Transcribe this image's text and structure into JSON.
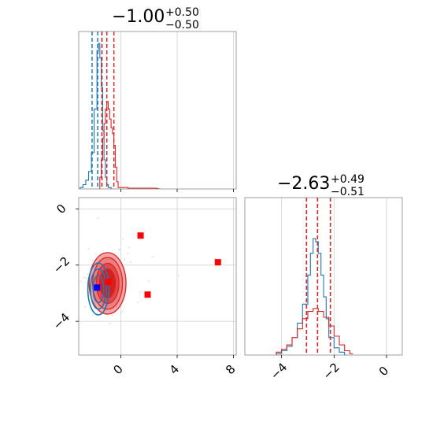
{
  "chart_data": {
    "type": "corner",
    "parameters": [
      {
        "title_value": "−1.00",
        "title_upper": "+0.50",
        "title_lower": "−0.50"
      },
      {
        "title_value": "−2.63",
        "title_upper": "+0.49",
        "title_lower": "−0.51"
      }
    ],
    "xlim_param1": [
      -3.0,
      8.2
    ],
    "xlim_param2": [
      -5.4,
      0.6
    ],
    "ylim_param2": [
      -5.2,
      0.4
    ],
    "ticks_param1": [
      0,
      4,
      8
    ],
    "ticks_param2": [
      -4,
      -2,
      0
    ],
    "tick_labels_param1": [
      "0",
      "4",
      "8"
    ],
    "tick_labels_param2": [
      "−4",
      "−2",
      "0"
    ],
    "grid": true,
    "series": [
      {
        "color": "#1f77b4",
        "marginal1_quantiles": [
          -2.05,
          -1.65,
          -1.35
        ],
        "marginal2_quantiles": [
          -3.05,
          -2.63,
          -2.14
        ]
      },
      {
        "color": "#d62728",
        "marginal1_quantiles": [
          -1.35,
          -1.0,
          -0.5
        ],
        "marginal2_quantiles": [
          -3.05,
          -2.63,
          -2.14
        ]
      }
    ],
    "marginal1_blue": {
      "x": [
        -2.9,
        -2.7,
        -2.5,
        -2.3,
        -2.1,
        -1.9,
        -1.7,
        -1.6,
        -1.5,
        -1.4,
        -1.3,
        -1.2,
        -1.1,
        -1.0,
        -0.9,
        -0.7
      ],
      "y": [
        0.01,
        0.03,
        0.06,
        0.12,
        0.25,
        0.55,
        0.95,
        1.0,
        0.9,
        0.7,
        0.4,
        0.2,
        0.08,
        0.03,
        0.01,
        0
      ]
    },
    "marginal1_red": {
      "x": [
        -1.5,
        -1.4,
        -1.3,
        -1.2,
        -1.1,
        -1.0,
        -0.9,
        -0.8,
        -0.7,
        -0.6,
        -0.5,
        -0.4,
        -0.3,
        -0.2,
        0.5,
        1.5,
        2.5
      ],
      "y": [
        0.08,
        0.2,
        0.35,
        0.45,
        0.55,
        0.6,
        0.55,
        0.48,
        0.42,
        0.38,
        0.3,
        0.15,
        0.05,
        0.01,
        0.005,
        0.005,
        0.003
      ]
    },
    "marginal2_blue": {
      "x": [
        -4.2,
        -4.0,
        -3.8,
        -3.6,
        -3.4,
        -3.2,
        -3.0,
        -2.9,
        -2.8,
        -2.7,
        -2.6,
        -2.5,
        -2.4,
        -2.3,
        -2.2,
        -2.0,
        -1.8,
        -1.6
      ],
      "y": [
        0.01,
        0.03,
        0.06,
        0.12,
        0.22,
        0.35,
        0.55,
        0.7,
        0.8,
        0.78,
        0.7,
        0.55,
        0.4,
        0.25,
        0.12,
        0.05,
        0.02,
        0.0
      ]
    },
    "marginal2_red": {
      "x": [
        -4.2,
        -4.0,
        -3.8,
        -3.6,
        -3.4,
        -3.2,
        -3.0,
        -2.8,
        -2.6,
        -2.4,
        -2.2,
        -2.0,
        -1.8,
        -1.6,
        -1.4
      ],
      "y": [
        0.02,
        0.04,
        0.07,
        0.12,
        0.18,
        0.25,
        0.3,
        0.32,
        0.3,
        0.26,
        0.2,
        0.13,
        0.07,
        0.03,
        0.01
      ]
    },
    "scatter_points": [
      {
        "x": -1.7,
        "y": -2.8,
        "color": "#0000ff"
      },
      {
        "x": -0.9,
        "y": -2.6,
        "color": "#ff0000"
      },
      {
        "x": 1.4,
        "y": -0.95,
        "color": "#ff0000"
      },
      {
        "x": 1.9,
        "y": -3.05,
        "color": "#ff0000"
      },
      {
        "x": 6.9,
        "y": -1.9,
        "color": "#ff0000"
      }
    ],
    "red_contour_center": {
      "x": -0.95,
      "y": -2.65
    },
    "blue_contour_center": {
      "x": -1.6,
      "y": -2.85
    }
  }
}
